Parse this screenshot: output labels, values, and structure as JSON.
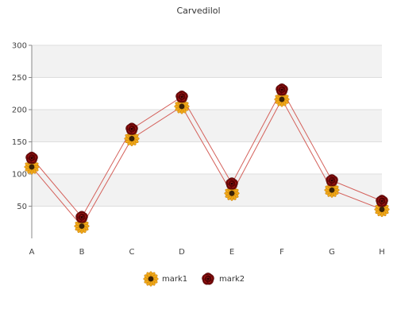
{
  "chart_data": {
    "type": "line",
    "title": "Carvedilol",
    "xlabel": "",
    "ylabel": "",
    "categories": [
      "A",
      "B",
      "C",
      "D",
      "E",
      "F",
      "G",
      "H"
    ],
    "ylim": [
      0,
      300
    ],
    "yticks": [
      50,
      100,
      150,
      200,
      250,
      300
    ],
    "grid": "horizontal alternating bands",
    "legend_position": "bottom-center",
    "series": [
      {
        "name": "mark1",
        "values": [
          111,
          19,
          155,
          205,
          70,
          216,
          75,
          45
        ],
        "line_color": "#d4605a",
        "marker": "sunflower-icon"
      },
      {
        "name": "mark2",
        "values": [
          125,
          33,
          170,
          220,
          85,
          231,
          90,
          58
        ],
        "line_color": "#d4605a",
        "marker": "rose-icon"
      }
    ]
  }
}
